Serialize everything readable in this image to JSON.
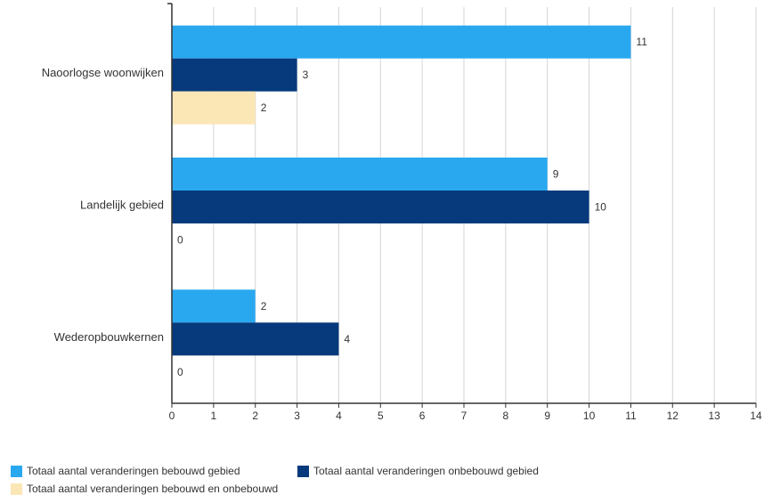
{
  "chart_data": {
    "type": "bar",
    "orientation": "horizontal",
    "categories": [
      "Naoorlogse woonwijken",
      "Landelijk gebied",
      "Wederopbouwkernen"
    ],
    "series": [
      {
        "name": "Totaal aantal veranderingen bebouwd gebied",
        "values": [
          11,
          9,
          2
        ],
        "color": "#29a8f0"
      },
      {
        "name": "Totaal aantal veranderingen onbebouwd gebied",
        "values": [
          3,
          10,
          4
        ],
        "color": "#063a7c"
      },
      {
        "name": "Totaal aantal veranderingen bebouwd en onbebouwd",
        "values": [
          2,
          0,
          0
        ],
        "color": "#fbe6b6"
      }
    ],
    "xlim": [
      0,
      14
    ],
    "xticks": [
      "0",
      "1",
      "2",
      "3",
      "4",
      "5",
      "6",
      "7",
      "8",
      "9",
      "10",
      "11",
      "12",
      "13",
      "14"
    ],
    "grid": true,
    "legend_position": "bottom",
    "data_labels": true
  }
}
